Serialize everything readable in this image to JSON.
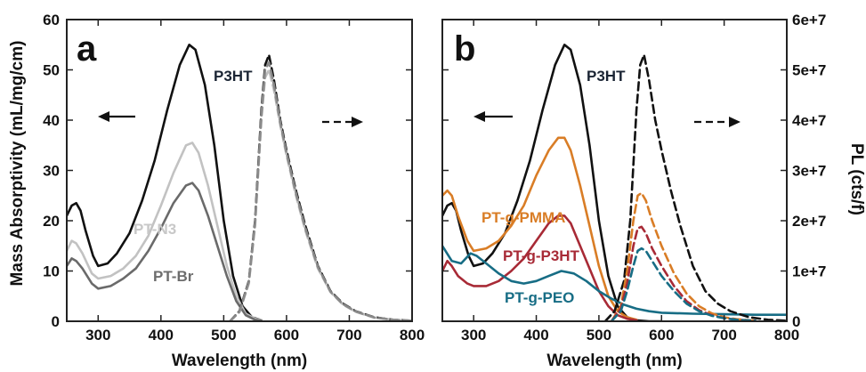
{
  "chart_data": [
    {
      "type": "line",
      "panel_label": "a",
      "xlabel": "Wavelength (nm)",
      "ylabel": "Mass Absorptivity (mL/mg/cm)",
      "xlim": [
        250,
        800
      ],
      "ylim": [
        0,
        60
      ],
      "xticks": [
        "300",
        "400",
        "500",
        "600",
        "700",
        "800"
      ],
      "yticks": [
        "0",
        "10",
        "20",
        "30",
        "40",
        "50",
        "60"
      ],
      "grid": false,
      "legend": "none (inline labels)",
      "arrows": [
        {
          "direction": "left",
          "style": "solid"
        },
        {
          "direction": "right",
          "style": "dashed"
        }
      ],
      "series": [
        {
          "name": "P3HT",
          "kind": "absorbance",
          "color": "#111111",
          "label_color": "#1a2433",
          "x": [
            250,
            258,
            265,
            272,
            280,
            292,
            300,
            315,
            330,
            350,
            370,
            390,
            410,
            430,
            445,
            455,
            470,
            485,
            500,
            515,
            530,
            545,
            560
          ],
          "y": [
            21,
            23,
            23.5,
            22,
            18,
            13,
            11,
            11.5,
            13.5,
            17.5,
            24,
            32,
            42,
            51,
            55,
            54,
            47,
            35,
            20,
            9,
            3,
            0.8,
            0.2
          ]
        },
        {
          "name": "PT-N3",
          "kind": "absorbance",
          "color": "#c2c2c2",
          "label_color": "#c8c8c8",
          "x": [
            250,
            258,
            265,
            275,
            290,
            300,
            320,
            340,
            360,
            380,
            400,
            420,
            440,
            450,
            460,
            475,
            490,
            505,
            520,
            535,
            550,
            560
          ],
          "y": [
            14,
            16,
            15.5,
            13.5,
            9.5,
            8.5,
            9,
            10.5,
            13,
            17,
            23,
            29.5,
            35,
            35.5,
            33.5,
            27,
            19,
            11,
            5,
            1.5,
            0.5,
            0.2
          ]
        },
        {
          "name": "PT-Br",
          "kind": "absorbance",
          "color": "#6a6a6a",
          "label_color": "#6d6d6d",
          "x": [
            250,
            258,
            265,
            275,
            290,
            300,
            320,
            340,
            360,
            380,
            400,
            420,
            440,
            450,
            460,
            475,
            490,
            505,
            520,
            535,
            550,
            560
          ],
          "y": [
            11,
            12.5,
            12,
            10.5,
            7.5,
            6.5,
            7,
            8.5,
            10.5,
            14,
            18.5,
            23.5,
            27,
            27.5,
            26,
            21,
            15,
            9,
            4,
            1.2,
            0.3,
            0.1
          ]
        },
        {
          "name": "P3HT",
          "kind": "PL",
          "color": "#111111",
          "x": [
            510,
            525,
            540,
            550,
            560,
            566,
            572,
            580,
            590,
            600,
            615,
            630,
            650,
            670,
            690,
            710,
            740,
            770,
            800
          ],
          "y": [
            0,
            2,
            8,
            20,
            42,
            51,
            53,
            48,
            40,
            34,
            26,
            19,
            11,
            6,
            3.5,
            2,
            0.8,
            0.3,
            0.1
          ]
        },
        {
          "name": "PT-N3",
          "kind": "PL",
          "color": "#bdbdbd",
          "x": [
            510,
            525,
            540,
            550,
            560,
            566,
            572,
            580,
            590,
            600,
            615,
            630,
            650,
            670,
            690,
            710,
            740,
            770,
            800
          ],
          "y": [
            0,
            1.8,
            7.5,
            19,
            40,
            48.5,
            50,
            46,
            39,
            33,
            25,
            18,
            10.5,
            5.8,
            3.3,
            1.9,
            0.7,
            0.3,
            0.1
          ]
        },
        {
          "name": "PT-Br",
          "kind": "PL",
          "color": "#8a8a8a",
          "x": [
            510,
            525,
            540,
            550,
            560,
            566,
            572,
            580,
            590,
            600,
            615,
            630,
            650,
            670,
            690,
            710,
            740,
            770,
            800
          ],
          "y": [
            0,
            1.9,
            7.8,
            19.5,
            41,
            50,
            51.5,
            47,
            39.5,
            33.5,
            25.5,
            18.5,
            10.8,
            5.9,
            3.4,
            1.95,
            0.75,
            0.3,
            0.1
          ]
        }
      ]
    },
    {
      "type": "line",
      "panel_label": "b",
      "xlabel": "Wavelength (nm)",
      "ylabel": "PL (cts/f)",
      "xlim": [
        250,
        800
      ],
      "ylim": [
        0,
        60000000
      ],
      "xticks": [
        "300",
        "400",
        "500",
        "600",
        "700",
        "800"
      ],
      "yticks": [
        "0",
        "1e+7",
        "2e+7",
        "3e+7",
        "4e+7",
        "5e+7",
        "6e+7"
      ],
      "grid": false,
      "legend": "none (inline labels)",
      "arrows": [
        {
          "direction": "left",
          "style": "solid"
        },
        {
          "direction": "right",
          "style": "dashed"
        }
      ],
      "series": [
        {
          "name": "P3HT",
          "kind": "absorbance",
          "color": "#111111",
          "label_color": "#1a2433",
          "x": [
            250,
            258,
            265,
            272,
            280,
            292,
            300,
            315,
            330,
            350,
            370,
            390,
            410,
            430,
            445,
            455,
            470,
            485,
            500,
            515,
            530,
            545,
            560,
            580,
            600
          ],
          "y": [
            21,
            23,
            23.5,
            22,
            18,
            13,
            11,
            11.5,
            13.5,
            17.5,
            24,
            32,
            42,
            51,
            55,
            54,
            47,
            35,
            20,
            9,
            3,
            0.8,
            0.2,
            0,
            0
          ]
        },
        {
          "name": "PT-g-PMMA",
          "kind": "absorbance",
          "color": "#d97d26",
          "label_color": "#d97d26",
          "x": [
            250,
            258,
            265,
            275,
            290,
            300,
            320,
            340,
            360,
            380,
            400,
            420,
            435,
            445,
            455,
            470,
            485,
            500,
            515,
            530,
            545,
            560
          ],
          "y": [
            25,
            26,
            25,
            21,
            16,
            14,
            14.5,
            16,
            19,
            23,
            29,
            34,
            36.5,
            36.5,
            34,
            27,
            19,
            11,
            5,
            2,
            0.8,
            0.3
          ]
        },
        {
          "name": "PT-g-P3HT",
          "kind": "absorbance",
          "color": "#a82a36",
          "label_color": "#a82a36",
          "x": [
            250,
            258,
            265,
            275,
            290,
            300,
            320,
            340,
            360,
            380,
            400,
            420,
            435,
            445,
            455,
            470,
            485,
            500,
            515,
            530,
            545,
            560
          ],
          "y": [
            10,
            12,
            11,
            9,
            7.5,
            7,
            7,
            8,
            10,
            12.5,
            16,
            19.5,
            21,
            21,
            19.5,
            15,
            10.5,
            6,
            3,
            1.2,
            0.5,
            0.2
          ]
        },
        {
          "name": "PT-g-PEO",
          "kind": "absorbance",
          "color": "#176d85",
          "label_color": "#176d85",
          "x": [
            250,
            265,
            280,
            295,
            305,
            320,
            340,
            360,
            380,
            400,
            420,
            440,
            460,
            480,
            500,
            520,
            540,
            560,
            580,
            600,
            650,
            700,
            750,
            800
          ],
          "y": [
            15,
            12,
            11.5,
            13.5,
            13,
            11.5,
            9.5,
            8,
            7.5,
            8,
            9,
            10,
            9.5,
            8,
            6,
            4.5,
            3.3,
            2.5,
            2,
            1.7,
            1.5,
            1.4,
            1.3,
            1.3
          ]
        },
        {
          "name": "P3HT",
          "kind": "PL",
          "color": "#111111",
          "x": [
            510,
            525,
            540,
            550,
            560,
            566,
            572,
            580,
            590,
            600,
            615,
            630,
            650,
            670,
            690,
            710,
            740,
            770,
            800
          ],
          "y": [
            0,
            2,
            8,
            20,
            42,
            51,
            53,
            48,
            40,
            34,
            26,
            19,
            11,
            6,
            3.5,
            2,
            0.8,
            0.3,
            0.1
          ]
        },
        {
          "name": "PT-g-PMMA",
          "kind": "PL",
          "color": "#d97d26",
          "x": [
            520,
            535,
            545,
            555,
            562,
            568,
            575,
            585,
            600,
            620,
            640,
            660,
            680,
            700,
            720,
            750
          ],
          "y": [
            0,
            3,
            10,
            20,
            25,
            25.5,
            24,
            20,
            15,
            9.5,
            5.5,
            3,
            1.6,
            0.8,
            0.4,
            0.1
          ]
        },
        {
          "name": "PT-g-P3HT",
          "kind": "PL",
          "color": "#a82a36",
          "x": [
            520,
            535,
            545,
            555,
            562,
            568,
            575,
            585,
            600,
            620,
            640,
            660,
            680,
            700,
            720,
            750
          ],
          "y": [
            0,
            2.5,
            7.5,
            15,
            18.5,
            18.8,
            17.5,
            14.5,
            11,
            7,
            4,
            2.2,
            1.2,
            0.6,
            0.3,
            0.1
          ]
        },
        {
          "name": "PT-g-PEO",
          "kind": "PL",
          "color": "#176d85",
          "x": [
            520,
            535,
            545,
            555,
            562,
            568,
            575,
            585,
            600,
            620,
            640,
            660,
            680,
            700,
            720,
            750
          ],
          "y": [
            0,
            2,
            6,
            11,
            14,
            14.5,
            14,
            12,
            9,
            6,
            3.5,
            2,
            1.1,
            0.6,
            0.3,
            0.1
          ]
        }
      ]
    }
  ]
}
